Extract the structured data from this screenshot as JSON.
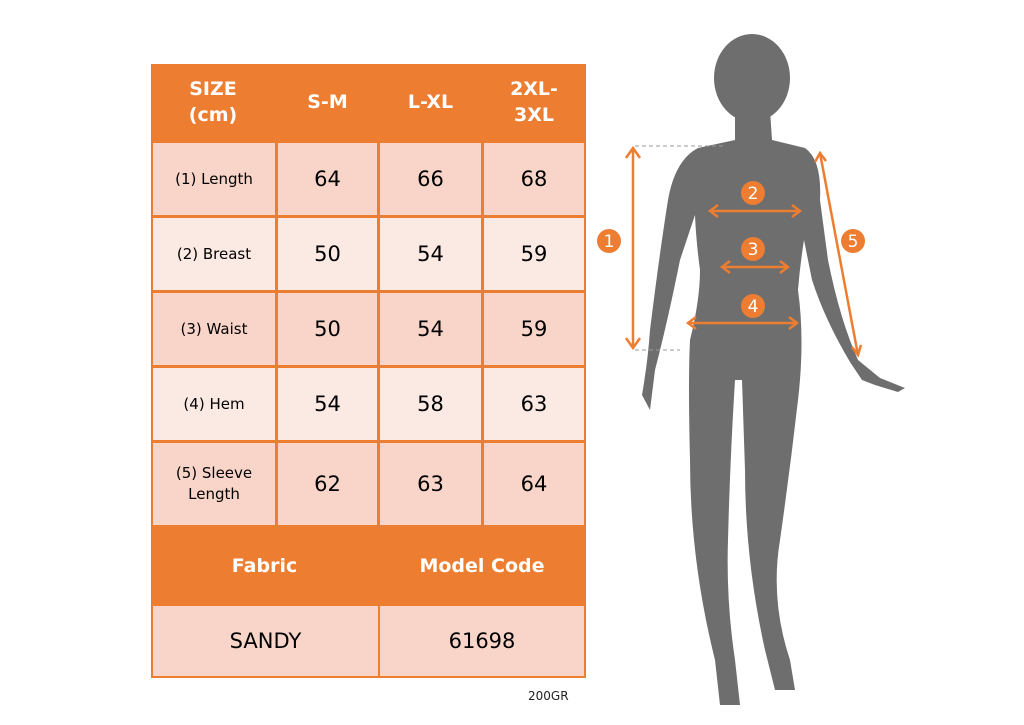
{
  "table": {
    "headers": [
      "SIZE\n(cm)",
      "S-M",
      "L-XL",
      "2XL-\n3XL"
    ],
    "rows": [
      {
        "label": "(1) Length",
        "values": [
          "64",
          "66",
          "68"
        ]
      },
      {
        "label": "(2) Breast",
        "values": [
          "50",
          "54",
          "59"
        ]
      },
      {
        "label": "(3) Waist",
        "values": [
          "50",
          "54",
          "59"
        ]
      },
      {
        "label": "(4) Hem",
        "values": [
          "54",
          "58",
          "63"
        ]
      },
      {
        "label": "(5) Sleeve\nLength",
        "values": [
          "62",
          "63",
          "64"
        ]
      }
    ],
    "footer_headers": [
      "Fabric",
      "Model Code"
    ],
    "footer_values": [
      "SANDY",
      "61698"
    ]
  },
  "weight_note": "200GR",
  "figure": {
    "markers": [
      "1",
      "2",
      "3",
      "4",
      "5"
    ]
  },
  "colors": {
    "accent": "#ED7D31",
    "cell_dark": "#F8D5C8",
    "cell_light": "#FBE9E3",
    "silhouette": "#6E6E6E"
  }
}
